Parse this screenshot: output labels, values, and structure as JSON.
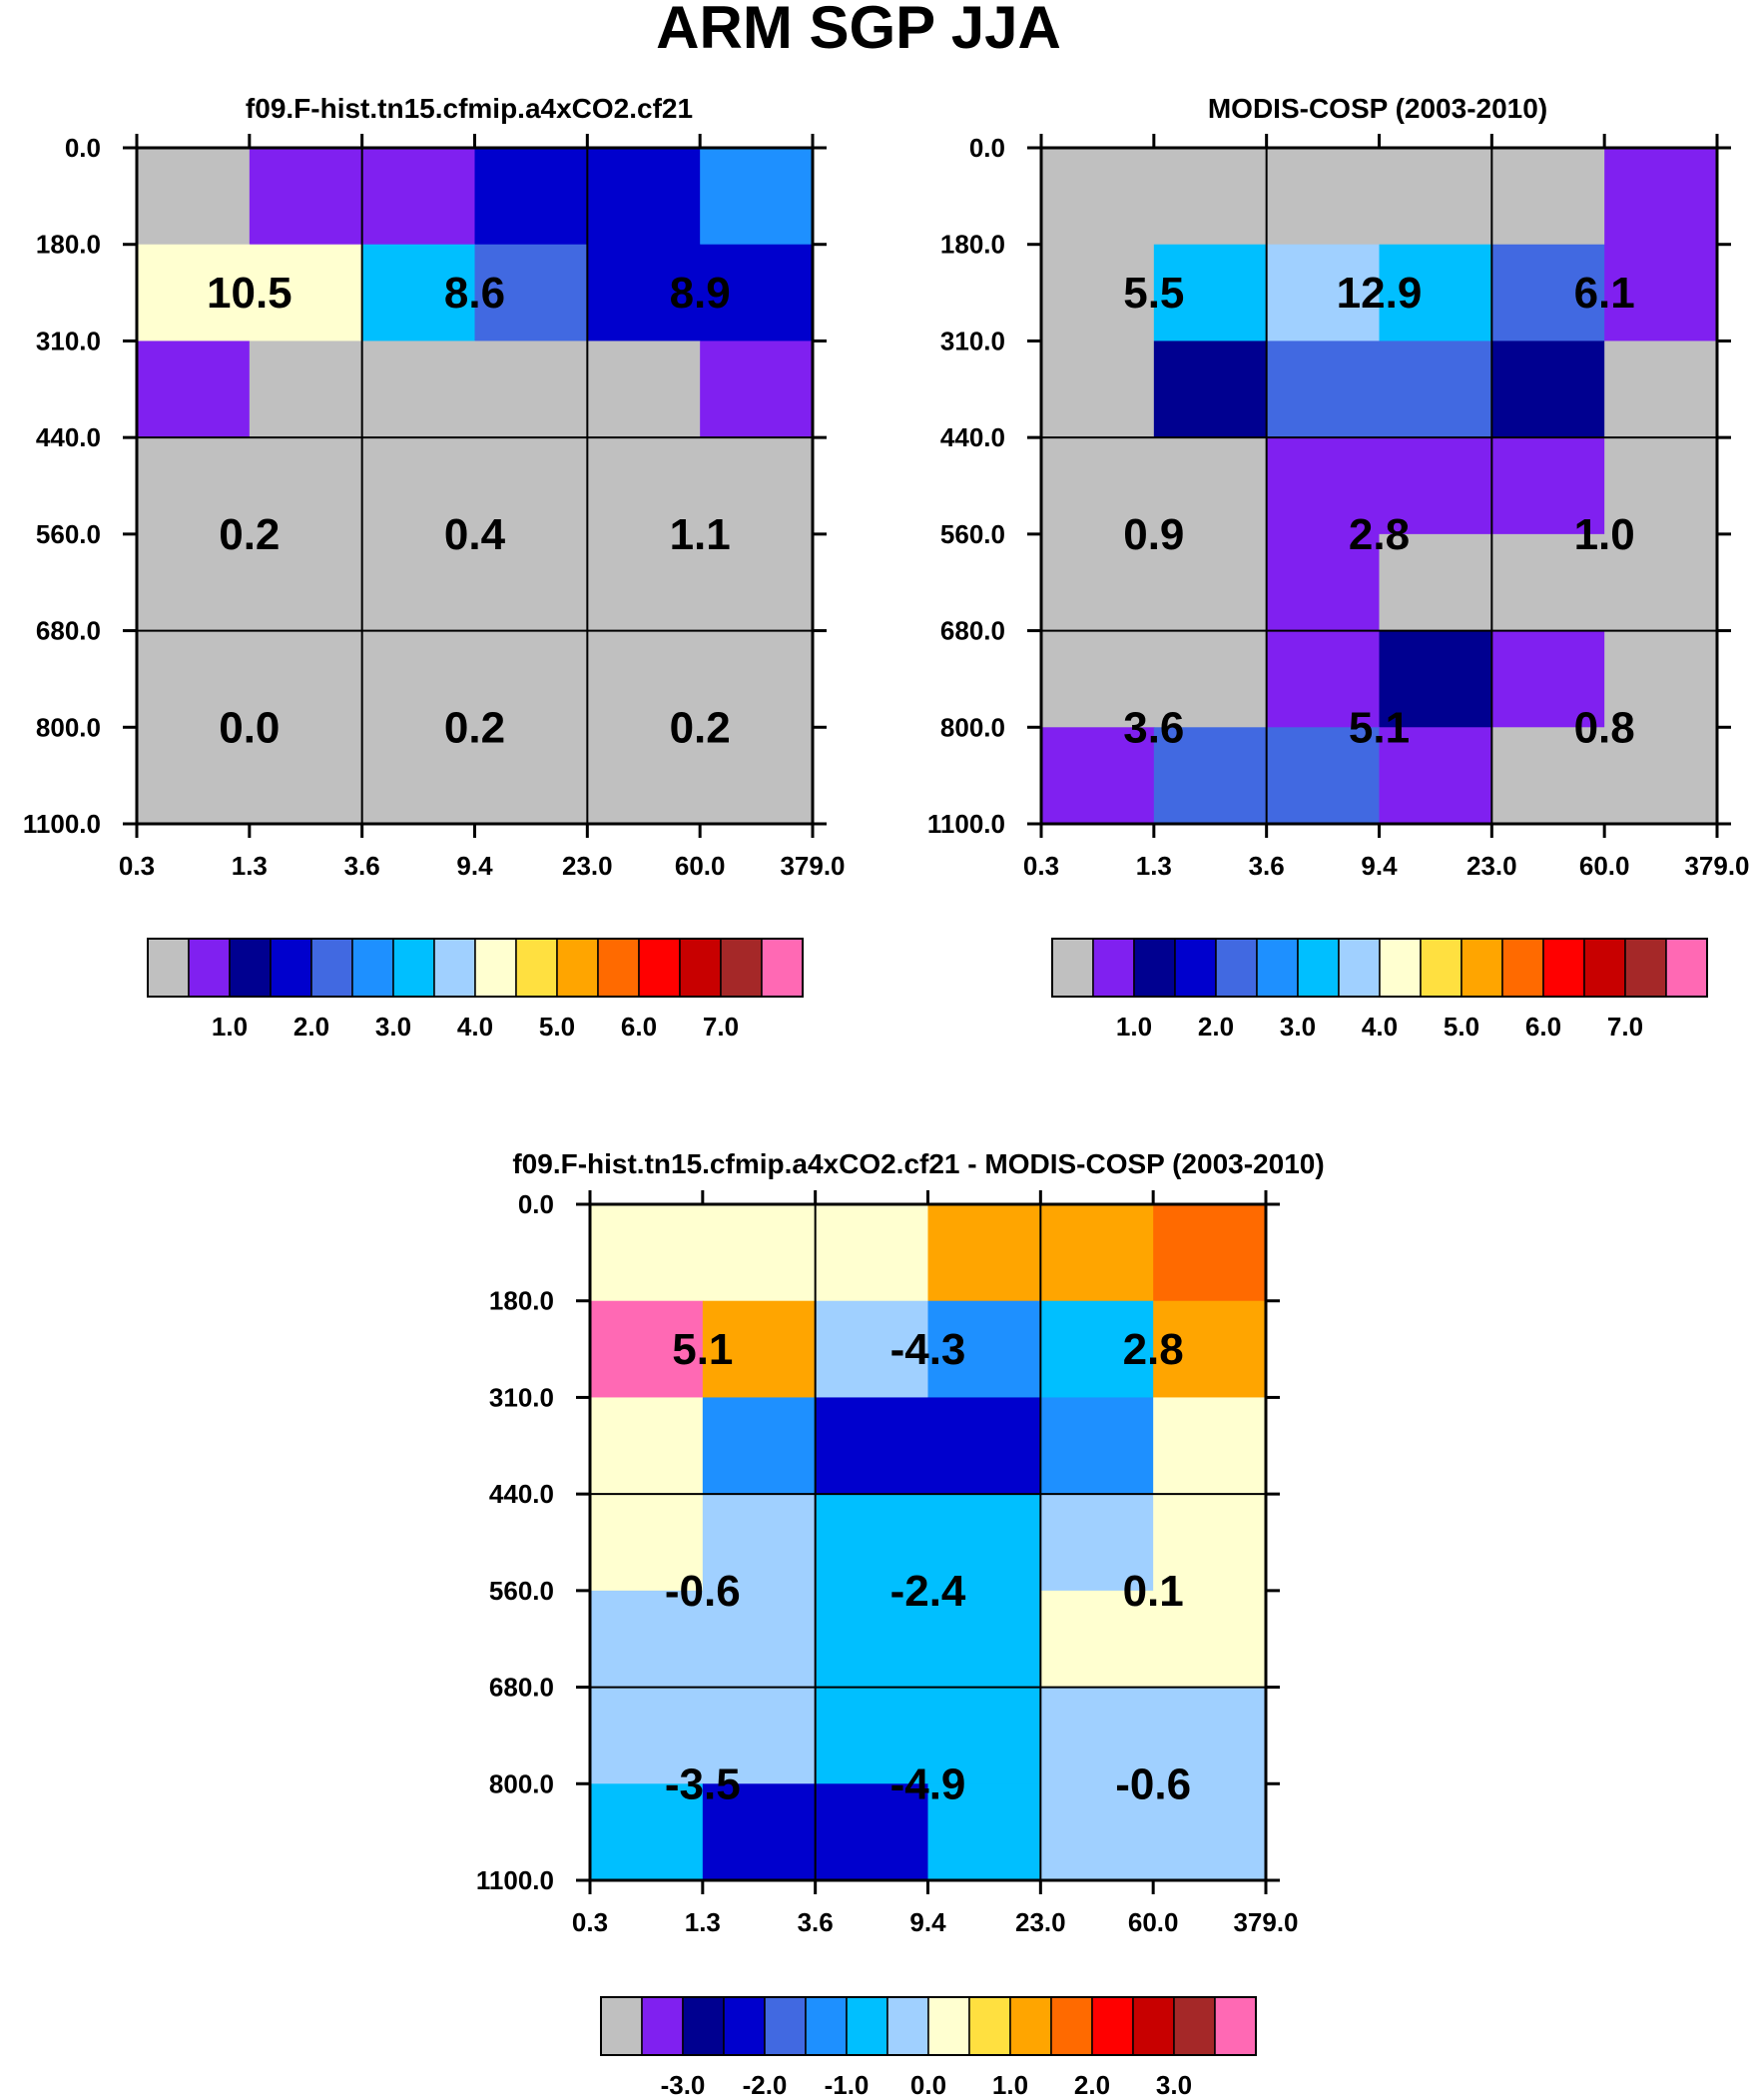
{
  "title": "ARM SGP JJA",
  "colors": {
    "palette": [
      "#c0c0c0",
      "#8020f0",
      "#000090",
      "#0000cd",
      "#4169e1",
      "#1e90ff",
      "#00bfff",
      "#a0d0ff",
      "#ffffd0",
      "#ffe040",
      "#ffa500",
      "#ff6a00",
      "#ff0000",
      "#c80000",
      "#a52828",
      "#ff69b4"
    ]
  },
  "chart_data": [
    {
      "type": "heatmap",
      "title": "f09.F-hist.tn15.cfmip.a4xCO2.cf21",
      "x_ticks": [
        "0.3",
        "1.3",
        "3.6",
        "9.4",
        "23.0",
        "60.0",
        "379.0"
      ],
      "y_ticks": [
        "0.0",
        "180.0",
        "310.0",
        "440.0",
        "560.0",
        "680.0",
        "800.0",
        "1100.0"
      ],
      "cell_color_index": [
        [
          0,
          1,
          1,
          3,
          3,
          5
        ],
        [
          8,
          8,
          6,
          4,
          3,
          3
        ],
        [
          1,
          0,
          0,
          0,
          0,
          1
        ],
        [
          0,
          0,
          0,
          0,
          0,
          0
        ],
        [
          0,
          0,
          0,
          0,
          0,
          0
        ],
        [
          0,
          0,
          0,
          0,
          0,
          0
        ],
        [
          0,
          0,
          0,
          0,
          0,
          0
        ]
      ],
      "group_values": [
        [
          "10.5",
          "8.6",
          "8.9"
        ],
        [
          "0.2",
          "0.4",
          "1.1"
        ],
        [
          "0.0",
          "0.2",
          "0.2"
        ]
      ],
      "colorbar_ticks": [
        "1.0",
        "2.0",
        "3.0",
        "4.0",
        "5.0",
        "6.0",
        "7.0"
      ]
    },
    {
      "type": "heatmap",
      "title": "MODIS-COSP (2003-2010)",
      "x_ticks": [
        "0.3",
        "1.3",
        "3.6",
        "9.4",
        "23.0",
        "60.0",
        "379.0"
      ],
      "y_ticks": [
        "0.0",
        "180.0",
        "310.0",
        "440.0",
        "560.0",
        "680.0",
        "800.0",
        "1100.0"
      ],
      "cell_color_index": [
        [
          0,
          0,
          0,
          0,
          0,
          1
        ],
        [
          0,
          6,
          7,
          6,
          4,
          1
        ],
        [
          0,
          2,
          4,
          4,
          2,
          0
        ],
        [
          0,
          0,
          1,
          1,
          1,
          0
        ],
        [
          0,
          0,
          1,
          0,
          0,
          0
        ],
        [
          0,
          0,
          1,
          2,
          1,
          0
        ],
        [
          1,
          4,
          4,
          1,
          0,
          0
        ]
      ],
      "group_values": [
        [
          "5.5",
          "12.9",
          "6.1"
        ],
        [
          "0.9",
          "2.8",
          "1.0"
        ],
        [
          "3.6",
          "5.1",
          "0.8"
        ]
      ],
      "colorbar_ticks": [
        "1.0",
        "2.0",
        "3.0",
        "4.0",
        "5.0",
        "6.0",
        "7.0"
      ]
    },
    {
      "type": "heatmap",
      "title": "f09.F-hist.tn15.cfmip.a4xCO2.cf21 - MODIS-COSP (2003-2010)",
      "x_ticks": [
        "0.3",
        "1.3",
        "3.6",
        "9.4",
        "23.0",
        "60.0",
        "379.0"
      ],
      "y_ticks": [
        "0.0",
        "180.0",
        "310.0",
        "440.0",
        "560.0",
        "680.0",
        "800.0",
        "1100.0"
      ],
      "cell_color_index": [
        [
          8,
          8,
          8,
          10,
          10,
          11
        ],
        [
          15,
          10,
          7,
          5,
          6,
          10
        ],
        [
          8,
          5,
          3,
          3,
          5,
          8
        ],
        [
          8,
          7,
          6,
          6,
          7,
          8
        ],
        [
          7,
          7,
          6,
          6,
          8,
          8
        ],
        [
          7,
          7,
          6,
          6,
          7,
          7
        ],
        [
          6,
          3,
          3,
          6,
          7,
          7
        ]
      ],
      "group_values": [
        [
          "5.1",
          "-4.3",
          "2.8"
        ],
        [
          "-0.6",
          "-2.4",
          "0.1"
        ],
        [
          "-3.5",
          "-4.9",
          "-0.6"
        ]
      ],
      "colorbar_ticks": [
        "-3.0",
        "-2.0",
        "-1.0",
        "0.0",
        "1.0",
        "2.0",
        "3.0"
      ]
    }
  ]
}
